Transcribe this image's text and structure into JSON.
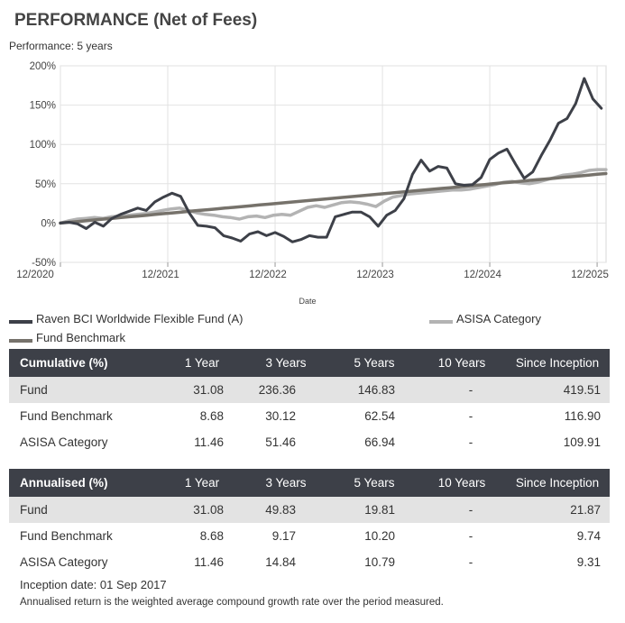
{
  "title": "PERFORMANCE (Net of Fees)",
  "subtitle": "Performance: 5 years",
  "chart_data": {
    "type": "line",
    "xlabel": "Date",
    "ylabel": "",
    "ylim": [
      -50,
      200
    ],
    "yticks": [
      -50,
      0,
      50,
      100,
      150,
      200
    ],
    "ytick_labels": [
      "-50%",
      "0%",
      "50%",
      "100%",
      "150%",
      "200%"
    ],
    "xlim": [
      0,
      61
    ],
    "xticks": [
      0,
      12,
      24,
      36,
      48,
      60
    ],
    "xtick_labels": [
      "12/2020",
      "12/2021",
      "12/2022",
      "12/2023",
      "12/2024",
      "12/2025"
    ],
    "grid": true,
    "series": [
      {
        "name": "Raven BCI Worldwide Flexible Fund (A)",
        "color": "#3d4048",
        "values": [
          0,
          1,
          -1,
          -7,
          1,
          -4,
          6,
          11,
          15,
          19,
          16,
          27,
          33,
          38,
          34,
          13,
          -3,
          -4,
          -6,
          -16,
          -19,
          -23,
          -14,
          -11,
          -16,
          -12,
          -17,
          -24,
          -21,
          -16,
          -18,
          -18,
          8,
          11,
          14,
          14,
          8,
          -4,
          10,
          16,
          31,
          62,
          80,
          66,
          72,
          70,
          50,
          48,
          49,
          58,
          81,
          89,
          94,
          75,
          57,
          65,
          86,
          105,
          127,
          133,
          152,
          184,
          158,
          146
        ],
        "x_start": 0,
        "x_step": 0.96
      },
      {
        "name": "ASISA Category",
        "color": "#b3b3b3",
        "values": [
          0,
          3,
          5,
          6,
          7,
          6,
          8,
          9,
          10,
          11,
          12,
          14,
          16,
          18,
          19,
          16,
          13,
          11,
          10,
          8,
          7,
          5,
          8,
          9,
          7,
          10,
          11,
          10,
          15,
          20,
          22,
          20,
          23,
          26,
          27,
          26,
          24,
          21,
          28,
          33,
          35,
          37,
          38,
          39,
          40,
          41,
          42,
          42,
          43,
          45,
          47,
          49,
          52,
          53,
          51,
          50,
          52,
          55,
          58,
          61,
          62,
          64,
          67,
          68,
          68
        ],
        "x_start": 0,
        "x_step": 0.953
      },
      {
        "name": "Fund Benchmark",
        "color": "#76726b",
        "values": [
          0,
          1,
          2,
          3,
          4,
          5,
          6,
          7,
          8,
          9,
          10,
          11,
          12,
          13,
          14,
          15,
          16,
          17,
          18,
          19,
          20,
          21,
          22,
          23,
          24,
          25,
          26,
          27,
          28,
          29,
          30,
          31,
          32,
          33,
          34,
          35,
          36,
          37,
          38,
          39,
          40,
          41,
          42,
          43,
          44,
          45,
          46,
          47,
          48,
          49,
          50,
          51,
          52,
          53,
          54,
          55,
          56,
          57,
          58,
          59,
          60,
          61,
          62,
          63
        ],
        "x_start": 0,
        "x_step": 0.968
      }
    ]
  },
  "legend": {
    "fund": "Raven BCI Worldwide Flexible Fund (A)",
    "category": "ASISA Category",
    "benchmark": "Fund Benchmark"
  },
  "colors": {
    "fund": "#3d4048",
    "category": "#b3b3b3",
    "benchmark": "#76726b",
    "header": "#3d4048",
    "shade": "#e3e3e3"
  },
  "cumulative": {
    "headers": [
      "Cumulative (%)",
      "1 Year",
      "3 Years",
      "5 Years",
      "10 Years",
      "Since Inception"
    ],
    "rows": [
      [
        "Fund",
        "31.08",
        "236.36",
        "146.83",
        "-",
        "419.51"
      ],
      [
        "Fund Benchmark",
        "8.68",
        "30.12",
        "62.54",
        "-",
        "116.90"
      ],
      [
        "ASISA Category",
        "11.46",
        "51.46",
        "66.94",
        "-",
        "109.91"
      ]
    ]
  },
  "annualised": {
    "headers": [
      "Annualised (%)",
      "1 Year",
      "3 Years",
      "5 Years",
      "10 Years",
      "Since Inception"
    ],
    "rows": [
      [
        "Fund",
        "31.08",
        "49.83",
        "19.81",
        "-",
        "21.87"
      ],
      [
        "Fund Benchmark",
        "8.68",
        "9.17",
        "10.20",
        "-",
        "9.74"
      ],
      [
        "ASISA Category",
        "11.46",
        "14.84",
        "10.79",
        "-",
        "9.31"
      ]
    ]
  },
  "inception_note": "Inception date: 01 Sep 2017",
  "annualised_note": "Annualised return is the weighted average compound growth rate over the period measured."
}
